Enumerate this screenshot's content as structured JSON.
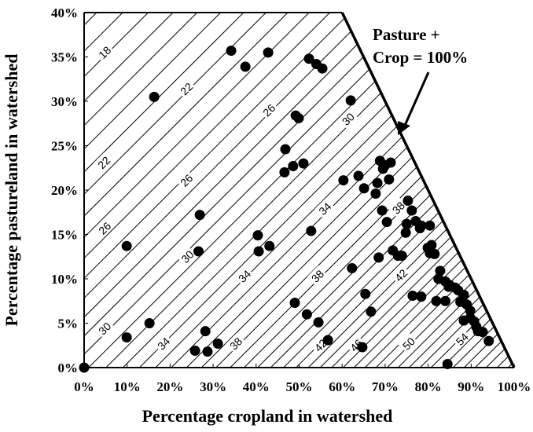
{
  "chart_data": {
    "type": "scatter",
    "x_label": "Percentage cropland in watershed",
    "y_label": "Percentage pastureland in watershed",
    "annotation": [
      "Pasture +",
      "Crop = 100%"
    ],
    "color": "#000000",
    "xlim": [
      0,
      100
    ],
    "ylim": [
      0,
      40
    ],
    "xticks": [
      {
        "value": 0,
        "label": "0%"
      },
      {
        "value": 10,
        "label": "10%"
      },
      {
        "value": 20,
        "label": "20%"
      },
      {
        "value": 30,
        "label": "30%"
      },
      {
        "value": 40,
        "label": "40%"
      },
      {
        "value": 50,
        "label": "50%"
      },
      {
        "value": 60,
        "label": "60%"
      },
      {
        "value": 70,
        "label": "70%"
      },
      {
        "value": 80,
        "label": "80%"
      },
      {
        "value": 90,
        "label": "90%"
      },
      {
        "value": 100,
        "label": "100%"
      }
    ],
    "yticks": [
      {
        "value": 0,
        "label": "0%"
      },
      {
        "value": 5,
        "label": "5%"
      },
      {
        "value": 10,
        "label": "10%"
      },
      {
        "value": 15,
        "label": "15%"
      },
      {
        "value": 20,
        "label": "20%"
      },
      {
        "value": 25,
        "label": "25%"
      },
      {
        "value": 30,
        "label": "30%"
      },
      {
        "value": 35,
        "label": "35%"
      },
      {
        "value": 40,
        "label": "40%"
      }
    ],
    "x": [
      0,
      9.9,
      15.2,
      9.9,
      16.3,
      34.2,
      37.5,
      42.8,
      52.3,
      54.0,
      55.4,
      62.0,
      26.9,
      26.6,
      40.4,
      40.6,
      43.1,
      46.8,
      46.6,
      48.6,
      49.2,
      49.9,
      51.0,
      52.8,
      60.3,
      63.8,
      65.1,
      62.3,
      68.2,
      67.8,
      68.8,
      69.5,
      70.0,
      71.3,
      70.9,
      69.3,
      70.4,
      68.5,
      71.8,
      73.0,
      73.9,
      75.3,
      76.2,
      75.0,
      74.8,
      77.1,
      78.4,
      78.1,
      80.4,
      79.9,
      80.8,
      80.4,
      81.5,
      49.0,
      51.8,
      54.5,
      56.7,
      65.4,
      66.7,
      64.7,
      76.4,
      78.4,
      81.9,
      82.8,
      82.4,
      84.0,
      85.0,
      84.0,
      84.8,
      86.3,
      87.0,
      88.3,
      87.5,
      89.0,
      88.3,
      89.8,
      89.8,
      90.7,
      91.2,
      91.6,
      92.7,
      94.1,
      84.5,
      25.8,
      28.2,
      28.7,
      31.1
    ],
    "values": [
      0,
      3.4,
      5.0,
      13.7,
      30.5,
      35.7,
      33.9,
      35.5,
      34.8,
      34.2,
      33.7,
      30.1,
      17.2,
      13.1,
      14.9,
      13.1,
      13.7,
      24.6,
      22.0,
      22.7,
      28.4,
      28.1,
      23.0,
      15.4,
      21.1,
      21.6,
      20.2,
      11.2,
      20.8,
      19.6,
      23.3,
      22.4,
      22.8,
      23.1,
      21.2,
      17.7,
      16.4,
      12.4,
      13.2,
      12.6,
      12.6,
      18.8,
      17.7,
      16.2,
      15.2,
      16.5,
      16.0,
      15.7,
      16.0,
      13.5,
      13.8,
      12.9,
      12.8,
      7.3,
      6.0,
      5.1,
      3.1,
      8.3,
      6.3,
      2.3,
      8.1,
      8.0,
      7.5,
      10.9,
      10.0,
      9.7,
      9.3,
      7.5,
      9.1,
      9.0,
      8.7,
      8.2,
      7.4,
      7.1,
      5.3,
      6.4,
      5.6,
      5.2,
      4.6,
      4.1,
      4.0,
      3.0,
      0.4,
      1.9,
      4.1,
      1.8,
      2.7
    ],
    "contour_labels": [
      {
        "value": 18,
        "x": 4.8,
        "y": 35.5
      },
      {
        "value": 22,
        "x": 23.8,
        "y": 31.4
      },
      {
        "value": 22,
        "x": 4.6,
        "y": 23.1
      },
      {
        "value": 26,
        "x": 43,
        "y": 29
      },
      {
        "value": 26,
        "x": 23.8,
        "y": 21.1
      },
      {
        "value": 26,
        "x": 4.8,
        "y": 15.7
      },
      {
        "value": 30,
        "x": 61.4,
        "y": 28
      },
      {
        "value": 30,
        "x": 24,
        "y": 12.5
      },
      {
        "value": 30,
        "x": 4.8,
        "y": 4.4
      },
      {
        "value": 34,
        "x": 56,
        "y": 17.9
      },
      {
        "value": 34,
        "x": 37.3,
        "y": 10.3
      },
      {
        "value": 34,
        "x": 18.5,
        "y": 2.7
      },
      {
        "value": 38,
        "x": 73.1,
        "y": 18
      },
      {
        "value": 38,
        "x": 54.3,
        "y": 10.3
      },
      {
        "value": 38,
        "x": 35.3,
        "y": 2.7
      },
      {
        "value": 42,
        "x": 73.7,
        "y": 10.4
      },
      {
        "value": 42,
        "x": 55,
        "y": 2.5
      },
      {
        "value": 46,
        "x": 63.3,
        "y": 2.5
      },
      {
        "value": 50,
        "x": 75.5,
        "y": 2.7
      },
      {
        "value": 54,
        "x": 87.9,
        "y": 3.2
      }
    ]
  }
}
